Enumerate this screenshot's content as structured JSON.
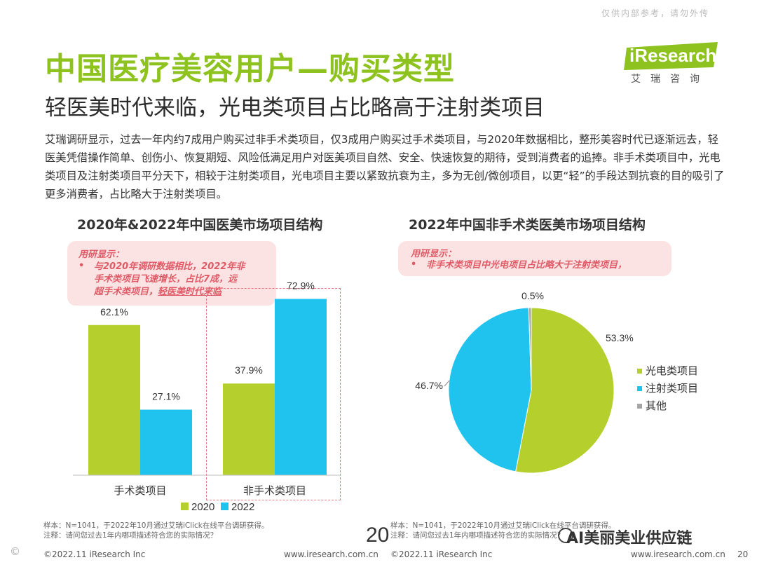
{
  "watermark_top": "仅供内部参考，请勿外传",
  "title": "中国医疗美容用户—购买类型",
  "subtitle": "轻医美时代来临，光电类项目占比略高于注射类项目",
  "logo": {
    "text": "iResearch",
    "cn": "艾瑞咨询"
  },
  "intro": "艾瑞调研显示，过去一年内约7成用户购买过非手术类项目，仅3成用户购买过手术类项目，与2020年数据相比，整形美容时代已逐渐远去，轻医美凭借操作简单、创伤小、恢复期短、风险低满足用户对医美项目自然、安全、快速恢复的期待，受到消费者的追捧。非手术类项目中，光电类项目及注射类项目平分天下，相较于注射类项目，光电项目主要以紧致抗衰为主，多为无创/微创项目，以更“轻”的手段达到抗衰的目的吸引了更多消费者，占比略大于注射类项目。",
  "callout_left": {
    "head": "用研显示：",
    "line1": "与2020年调研数据相比，2022年非",
    "line2": "手术类项目飞速增长，占比7成，远",
    "line3a": "超手术类项目，",
    "line3b": "轻医美时代来临"
  },
  "callout_right": {
    "head": "用研显示：",
    "line1": "非手术类项目中光电项目占比略大于注射类项目，"
  },
  "colors": {
    "green": "#b5cf2c",
    "blue": "#1fc3ee",
    "grey": "#a6a6a6",
    "title_green": "#8dc21f",
    "callout_text": "#e05a66"
  },
  "chart_data": [
    {
      "type": "bar",
      "title": "2020年&2022年中国医美市场项目结构",
      "categories": [
        "手术类项目",
        "非手术类项目"
      ],
      "series": [
        {
          "name": "2020",
          "values": [
            62.1,
            37.9
          ],
          "labels": [
            "62.1%",
            "37.9%"
          ],
          "color": "#b5cf2c"
        },
        {
          "name": "2022",
          "values": [
            27.1,
            72.9
          ],
          "labels": [
            "27.1%",
            "72.9%"
          ],
          "color": "#1fc3ee"
        }
      ],
      "ylim": [
        0,
        80
      ],
      "grid": false,
      "legend_position": "bottom"
    },
    {
      "type": "pie",
      "title": "2022年中国非手术类医美市场项目结构",
      "slices": [
        {
          "name": "光电类项目",
          "value": 53.3,
          "label": "53.3%",
          "color": "#b5cf2c"
        },
        {
          "name": "注射类项目",
          "value": 46.7,
          "label": "46.7%",
          "color": "#1fc3ee"
        },
        {
          "name": "其他",
          "value": 0.5,
          "label": "0.5%",
          "color": "#a6a6a6"
        }
      ],
      "legend_position": "right"
    }
  ],
  "footer": {
    "left_sample": "样本：N=1041，于2022年10月通过艾瑞iClick在线平台调研获得。",
    "left_note": "注释：请问您过去1年内哪项描述符合您的实际情况？",
    "right_sample": "样本：N=1041，于2022年10月通过艾瑞iClick在线平台调研获得。",
    "right_note": "注释：请问您过去1年内哪项描述符合您的实际情况？",
    "page_big": "20",
    "copyright_left": "©2022.11 iResearch Inc",
    "url_left": "www.iresearch.com.cn",
    "copyright_right": "©2022.11 iResearch Inc",
    "url_right": "www.iresearch.com.cn",
    "page_small": "20",
    "overlay_brand": "AI美丽美业供应链"
  }
}
